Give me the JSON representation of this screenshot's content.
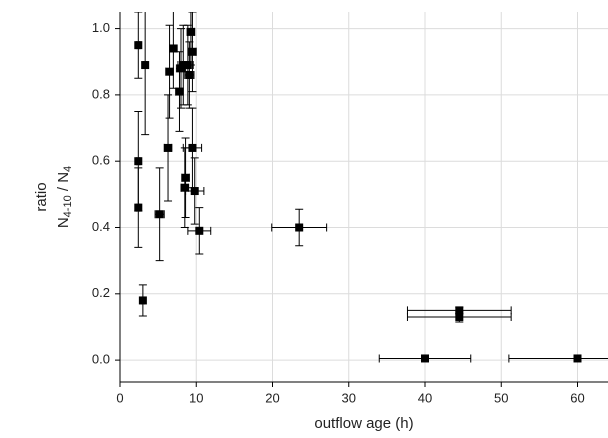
{
  "chart_data": {
    "type": "scatter",
    "xlabel": "outflow age (h)",
    "ylabel": "ratio",
    "ylabel_formula": {
      "main1": "N",
      "sub1": "4-10",
      "main2": " / N",
      "sub2": "4"
    },
    "xlim": [
      0,
      64
    ],
    "ylim": [
      -0.066,
      1.05
    ],
    "xticks": [
      0,
      10,
      20,
      30,
      40,
      50,
      60
    ],
    "yticks": [
      {
        "value": 0,
        "label": "0.0"
      },
      {
        "value": 0.2,
        "label": "0.2"
      },
      {
        "value": 0.4,
        "label": "0.4"
      },
      {
        "value": 0.6,
        "label": "0.6"
      },
      {
        "value": 0.8,
        "label": "0.8"
      },
      {
        "value": 1.0,
        "label": "1.0"
      }
    ],
    "grid": true,
    "series": [
      {
        "color": "#000000",
        "x": [
          2.4,
          3.3,
          2.4,
          2.4,
          3.0,
          5.2,
          6.3,
          6.5,
          7.0,
          7.8,
          8.0,
          8.3,
          8.5,
          8.6,
          8.9,
          9.1,
          9.3,
          9.5,
          9.5,
          9.8,
          10.4,
          23.5,
          44.5,
          44.5,
          40.0,
          60.0
        ],
        "y": [
          0.95,
          0.89,
          0.6,
          0.46,
          0.18,
          0.44,
          0.64,
          0.87,
          0.94,
          0.81,
          0.88,
          0.89,
          0.52,
          0.55,
          0.89,
          0.86,
          0.99,
          0.93,
          0.64,
          0.51,
          0.39,
          0.4,
          0.15,
          0.13,
          0.005,
          0.005
        ],
        "xerr": [
          0.2,
          0.2,
          0.2,
          0.2,
          0.2,
          0.6,
          0.5,
          0.5,
          0.5,
          0.5,
          0.6,
          0.7,
          0.5,
          0.5,
          0.7,
          0.6,
          0.5,
          0.5,
          1.2,
          1.2,
          1.5,
          3.6,
          6.8,
          6.8,
          6.0,
          9.0
        ],
        "yerr": [
          0.1,
          0.21,
          0.15,
          0.12,
          0.047,
          0.14,
          0.16,
          0.14,
          0.12,
          0.12,
          0.12,
          0.12,
          0.12,
          0.12,
          0.12,
          0.1,
          0.1,
          0.12,
          0.12,
          0.1,
          0.07,
          0.055,
          0.01,
          0.015,
          0.005,
          0.005
        ]
      }
    ]
  }
}
